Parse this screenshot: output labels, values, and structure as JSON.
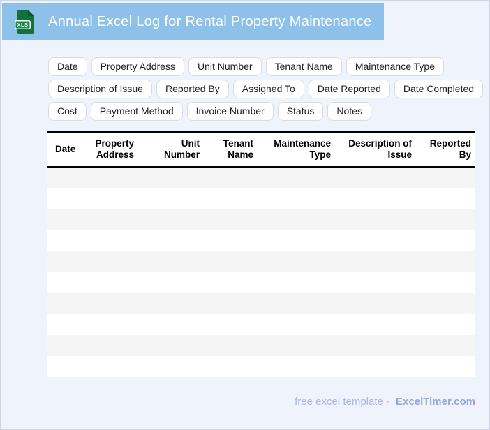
{
  "header": {
    "title": "Annual Excel Log for Rental Property Maintenance",
    "bar_color": "#8ec1ea",
    "icon": {
      "label": "XLS",
      "body_color": "#11703b",
      "fold_color": "#0a5530",
      "badge_color": "#1b8747"
    }
  },
  "chips": [
    "Date",
    "Property Address",
    "Unit Number",
    "Tenant Name",
    "Maintenance Type",
    "Description of Issue",
    "Reported By",
    "Assigned To",
    "Date Reported",
    "Date Completed",
    "Cost",
    "Payment Method",
    "Invoice Number",
    "Status",
    "Notes"
  ],
  "table": {
    "columns": [
      {
        "label": "Date",
        "lines": [
          "Date"
        ],
        "align": "left"
      },
      {
        "label": "Property Address",
        "lines": [
          "Property",
          "Address"
        ],
        "align": "right"
      },
      {
        "label": "Unit Number",
        "lines": [
          "Unit",
          "Number"
        ],
        "align": "right"
      },
      {
        "label": "Tenant Name",
        "lines": [
          "Tenant",
          "Name"
        ],
        "align": "right"
      },
      {
        "label": "Maintenance Type",
        "lines": [
          "Maintenance",
          "Type"
        ],
        "align": "right"
      },
      {
        "label": "Description of Issue",
        "lines": [
          "Description of",
          "Issue"
        ],
        "align": "right"
      },
      {
        "label": "Reported By",
        "lines": [
          "Reported",
          "By"
        ],
        "align": "right"
      }
    ],
    "row_count": 10,
    "rows": [],
    "stripe_color": "#f5f5f5",
    "border_color": "#000000"
  },
  "footer": {
    "prefix": "free excel template -",
    "brand": "ExcelTimer.com"
  },
  "colors": {
    "page_background": "#eff4fc",
    "page_border": "#ccd6e8",
    "header_bar": "#8ec1ea",
    "chip_border": "#d9dce1",
    "footer_text": "#a9b8e6",
    "footer_brand": "#96a8db"
  }
}
